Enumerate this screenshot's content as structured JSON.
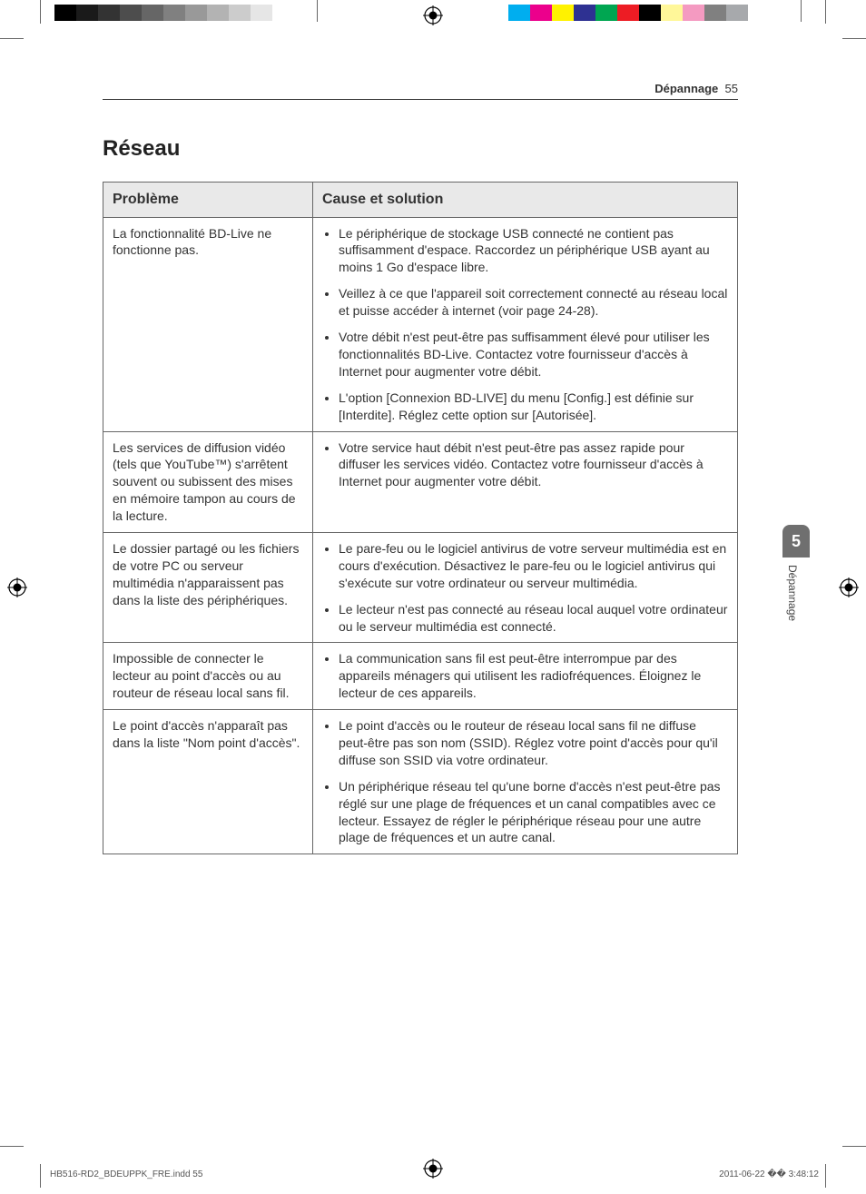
{
  "printer_marks": {
    "gray_bar_colors": [
      "#000000",
      "#1a1a1a",
      "#333333",
      "#4d4d4d",
      "#666666",
      "#808080",
      "#999999",
      "#b3b3b3",
      "#cccccc",
      "#e6e6e6",
      "#ffffff"
    ],
    "cmyk_bar_colors": [
      "#00aeef",
      "#ec008c",
      "#fff200",
      "#2e3192",
      "#00a651",
      "#ed1c24",
      "#000000",
      "#fff799",
      "#f49ac1",
      "#808080",
      "#a7a9ac"
    ]
  },
  "header": {
    "section": "Dépannage",
    "page_number": "55"
  },
  "title": "Réseau",
  "table": {
    "headers": {
      "col1": "Problème",
      "col2": "Cause et solution"
    },
    "rows": [
      {
        "problem": "La fonctionnalité BD-Live ne fonctionne pas.",
        "solutions": [
          "Le périphérique de stockage USB connecté ne contient pas suffisamment d'espace. Raccordez un périphérique USB ayant au moins 1 Go d'espace libre.",
          "Veillez à ce que l'appareil soit correctement connecté au réseau local et puisse accéder à internet (voir page 24-28).",
          "Votre débit n'est peut-être pas suffisamment élevé pour utiliser les fonctionnalités BD-Live. Contactez votre fournisseur d'accès à Internet pour augmenter votre débit.",
          "L'option [Connexion BD-LIVE] du menu [Config.] est définie sur [Interdite]. Réglez cette option sur [Autorisée]."
        ]
      },
      {
        "problem": "Les services de diffusion vidéo (tels que YouTube™) s'arrêtent souvent ou subissent des mises en mémoire tampon au cours de la lecture.",
        "solutions": [
          "Votre service haut débit n'est peut-être pas assez rapide pour diffuser les services vidéo. Contactez votre fournisseur d'accès à Internet pour augmenter votre débit."
        ]
      },
      {
        "problem": "Le dossier partagé ou les fichiers de votre PC ou serveur multimédia n'apparaissent pas dans la liste des périphériques.",
        "solutions": [
          "Le pare-feu ou le logiciel antivirus de votre serveur multimédia est en cours d'exécution. Désactivez le pare-feu ou le logiciel antivirus qui s'exécute sur votre ordinateur ou serveur multimédia.",
          "Le lecteur n'est pas connecté au réseau local auquel votre ordinateur ou le serveur multimédia est connecté."
        ]
      },
      {
        "problem": "Impossible de connecter le lecteur au point d'accès ou au routeur de réseau local sans fil.",
        "solutions": [
          "La communication sans fil est peut-être interrompue par des appareils ménagers qui utilisent les radiofréquences. Éloignez le lecteur de ces appareils."
        ]
      },
      {
        "problem": "Le point d'accès n'apparaît pas dans la liste \"Nom point d'accès\".",
        "solutions": [
          "Le point d'accès ou le routeur de réseau local sans fil ne diffuse peut-être pas son nom (SSID). Réglez votre point d'accès pour qu'il diffuse son SSID via votre ordinateur.",
          "Un périphérique réseau tel qu'une borne d'accès n'est peut-être pas réglé sur une plage de fréquences et un canal compatibles avec ce lecteur. Essayez de régler le périphérique réseau pour une autre plage de fréquences et un autre canal."
        ]
      }
    ]
  },
  "side_tab": {
    "number": "5",
    "label": "Dépannage"
  },
  "footer": {
    "left": "HB516-RD2_BDEUPPK_FRE.indd   55",
    "right": "2011-06-22   �� 3:48:12"
  }
}
